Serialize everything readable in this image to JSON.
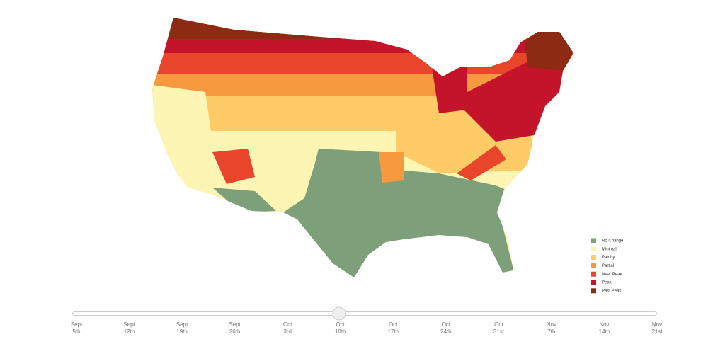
{
  "legend": [
    {
      "label": "No Change",
      "color": "#7da07a"
    },
    {
      "label": "Minimal",
      "color": "#fdf5b4"
    },
    {
      "label": "Patchy",
      "color": "#fecb66"
    },
    {
      "label": "Partial",
      "color": "#f79a3f"
    },
    {
      "label": "Near Peak",
      "color": "#e8452b"
    },
    {
      "label": "Peak",
      "color": "#c3142b"
    },
    {
      "label": "Past Peak",
      "color": "#8c2a12"
    }
  ],
  "slider": {
    "dates": [
      {
        "month": "Sept",
        "day": "5th"
      },
      {
        "month": "Sept",
        "day": "12th"
      },
      {
        "month": "Sept",
        "day": "19th"
      },
      {
        "month": "Sept",
        "day": "26th"
      },
      {
        "month": "Oct",
        "day": "3rd"
      },
      {
        "month": "Oct",
        "day": "10th"
      },
      {
        "month": "Oct",
        "day": "17th"
      },
      {
        "month": "Oct",
        "day": "24th"
      },
      {
        "month": "Oct",
        "day": "31st"
      },
      {
        "month": "Nov",
        "day": "7th"
      },
      {
        "month": "Nov",
        "day": "14th"
      },
      {
        "month": "Nov",
        "day": "21st"
      }
    ]
  }
}
